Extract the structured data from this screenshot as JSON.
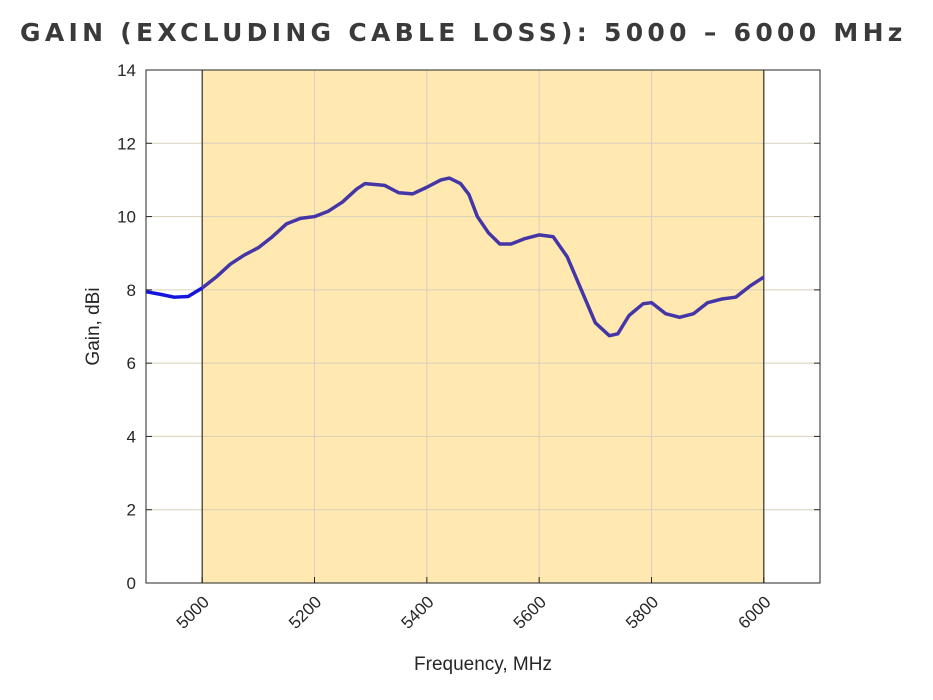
{
  "chart_data": {
    "type": "line",
    "title": "GAIN (EXCLUDING CABLE LOSS): 5000 – 6000 MHz",
    "xlabel": "Frequency, MHz",
    "ylabel": "Gain, dBi",
    "xlim": [
      4900,
      6100
    ],
    "ylim": [
      0,
      14
    ],
    "xticks": [
      5000,
      5200,
      5400,
      5600,
      5800,
      6000
    ],
    "yticks": [
      0,
      2,
      4,
      6,
      8,
      10,
      12,
      14
    ],
    "grid": true,
    "shaded_band": [
      5000,
      6000
    ],
    "colors": {
      "band": "#ffe9b0",
      "line_outside": "#1414dc",
      "line_inside": "#4536a8",
      "grid": "#d8d0b8"
    },
    "series": [
      {
        "name": "Gain",
        "x": [
          4900,
          4925,
          4950,
          4975,
          5000,
          5025,
          5050,
          5075,
          5100,
          5125,
          5150,
          5175,
          5200,
          5225,
          5250,
          5275,
          5290,
          5325,
          5350,
          5375,
          5400,
          5425,
          5440,
          5460,
          5475,
          5490,
          5510,
          5530,
          5550,
          5575,
          5600,
          5625,
          5650,
          5675,
          5700,
          5725,
          5740,
          5760,
          5785,
          5800,
          5825,
          5850,
          5875,
          5900,
          5925,
          5950,
          5975,
          6000
        ],
        "y": [
          7.95,
          7.88,
          7.8,
          7.82,
          8.05,
          8.35,
          8.7,
          8.95,
          9.15,
          9.45,
          9.8,
          9.95,
          10.0,
          10.15,
          10.4,
          10.75,
          10.9,
          10.85,
          10.65,
          10.62,
          10.8,
          11.0,
          11.05,
          10.9,
          10.6,
          10.0,
          9.55,
          9.25,
          9.25,
          9.4,
          9.5,
          9.45,
          8.9,
          8.0,
          7.1,
          6.75,
          6.8,
          7.3,
          7.62,
          7.65,
          7.35,
          7.25,
          7.35,
          7.65,
          7.75,
          7.8,
          8.1,
          8.35
        ]
      }
    ]
  }
}
